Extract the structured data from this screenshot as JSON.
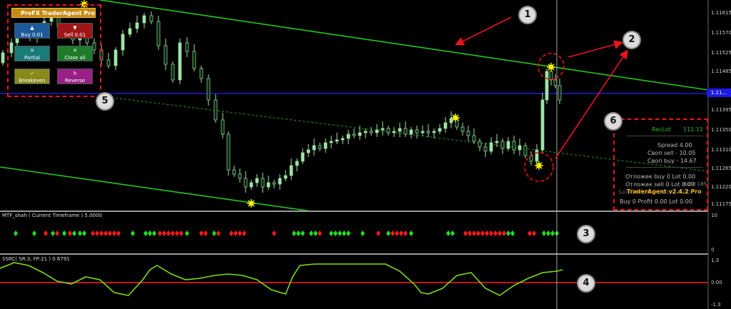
{
  "colors": {
    "background": "#000000",
    "bull_candle": "#9fe4a6",
    "bear_candle": "#06240c",
    "channel_line": "#21c820",
    "midline_dashed": "#1f9e1f",
    "blue_line": "#2323ff",
    "signal_green": "#1fe21f",
    "signal_red": "#ff1b1b",
    "ssrc_line": "#7cdd12",
    "ssrc_zero": "#ff2020",
    "annotation_red": "#e8151b",
    "arrow_marker": "#f4f400"
  },
  "price_axis": [
    "1.11615",
    "1.11570",
    "1.11525",
    "1.11485",
    "1.11440",
    "1.11395",
    "1.11350",
    "1.11310",
    "1.11265",
    "1.11220",
    "1.11175"
  ],
  "current_price_tag": "1.11...",
  "panel": {
    "title": "ProFX TraderAgent Pro",
    "buttons": [
      {
        "icon": "triangle-up-icon",
        "glyph": "▲",
        "label": "Buy 0.01",
        "color": "#1d5a9a"
      },
      {
        "icon": "triangle-down-icon",
        "glyph": "▼",
        "label": "Sell 0.01",
        "color": "#a01616"
      },
      {
        "icon": "close-icon",
        "glyph": "✕",
        "label": "Partial",
        "color": "#1a7b78"
      },
      {
        "icon": "close-icon",
        "glyph": "✕",
        "label": "Close all",
        "color": "#1d7b2a"
      },
      {
        "icon": "check-icon",
        "glyph": "✓",
        "label": "Breakeven",
        "color": "#8a8a1a"
      },
      {
        "icon": "reverse-icon",
        "glyph": "↻",
        "label": "Reverse",
        "color": "#9a1f86"
      }
    ]
  },
  "info": {
    "reclot_label": "RecLot",
    "reclot_value": "111.11",
    "spread": "Spread    4.00",
    "swap_sell": "Своп sell  - 10.05",
    "swap_buy": "Своп buy  - 14.67",
    "pending_buy": "Отложек buy 0  Lot 0.00",
    "pending_sell": "Отложек sell 0  Lot 0.00",
    "build": "Build 185",
    "brand": "TraderAgent v2.4.2 Pro",
    "sell_partial": "Sell 0  Profit 0.00  Lot 0.00",
    "buy_row": "Buy 0   Profit 0.00   Lot 0.00"
  },
  "mtf": {
    "title": "MTF_shah ( Current Timeframe ) 5.0000",
    "axis_top": "10",
    "axis_bottom": "0"
  },
  "ssrc": {
    "title": "SSRC( SR:3, FP:21 ) 0.6791",
    "axis_top": "1.3",
    "axis_zero": "0.00",
    "axis_bottom": "-1.3"
  },
  "badges": [
    "1",
    "2",
    "3",
    "4",
    "5",
    "6"
  ]
}
